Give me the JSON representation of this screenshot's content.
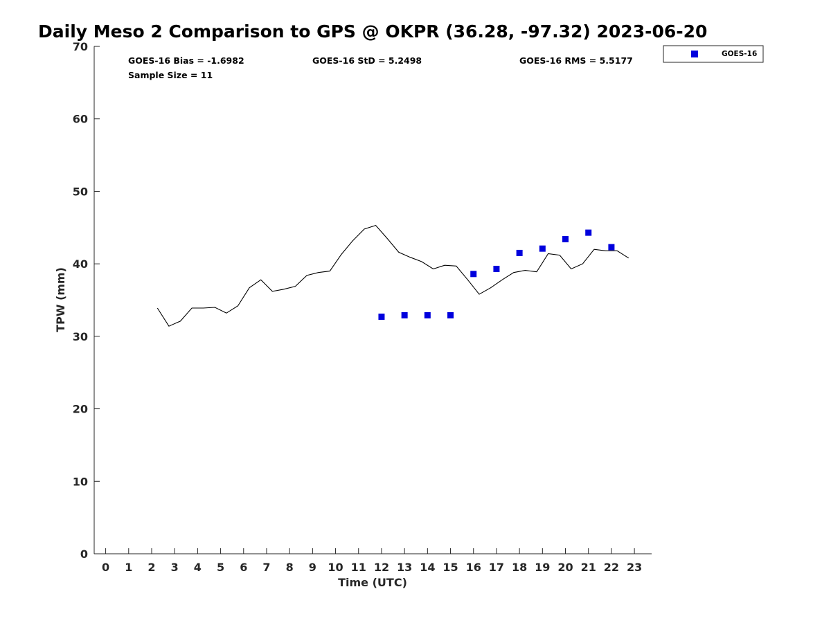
{
  "chart_data": {
    "type": "scatter",
    "title": "Daily Meso 2 Comparison to GPS @ OKPR (36.28, -97.32) 2023-06-20",
    "xlabel": "Time (UTC)",
    "ylabel": "TPW (mm)",
    "xlim": [
      -0.5,
      23.75
    ],
    "ylim": [
      0,
      70
    ],
    "x_ticks": [
      0,
      1,
      2,
      3,
      4,
      5,
      6,
      7,
      8,
      9,
      10,
      11,
      12,
      13,
      14,
      15,
      16,
      17,
      18,
      19,
      20,
      21,
      22,
      23
    ],
    "y_ticks": [
      0,
      10,
      20,
      30,
      40,
      50,
      60,
      70
    ],
    "grid": false,
    "legend_position": "top-right-outside",
    "stats": {
      "bias": "GOES-16 Bias = -1.6982",
      "std": "GOES-16 StD = 5.2498",
      "rms": "GOES-16 RMS = 5.5177",
      "sample_size": "Sample Size = 11"
    },
    "series": [
      {
        "kind": "line",
        "color": "#000000",
        "x": [
          2.25,
          2.75,
          3.25,
          3.75,
          4.25,
          4.75,
          5.25,
          5.75,
          6.25,
          6.75,
          7.25,
          7.75,
          8.25,
          8.75,
          9.25,
          9.75,
          10.25,
          10.75,
          11.25,
          11.75,
          12.25,
          12.75,
          13.25,
          13.75,
          14.25,
          14.75,
          15.25,
          15.75,
          16.25,
          16.75,
          17.25,
          17.75,
          18.25,
          18.75,
          19.25,
          19.75,
          20.25,
          20.75,
          21.25,
          21.75,
          22.25,
          22.75
        ],
        "y": [
          33.9,
          31.4,
          32.1,
          33.9,
          33.9,
          34.0,
          33.2,
          34.2,
          36.7,
          37.8,
          36.2,
          36.5,
          36.9,
          38.4,
          38.8,
          39.0,
          41.3,
          43.2,
          44.8,
          45.3,
          43.5,
          41.6,
          40.9,
          40.3,
          39.3,
          39.8,
          39.7,
          37.8,
          35.8,
          36.7,
          37.8,
          38.8,
          39.1,
          38.9,
          41.4,
          41.2,
          39.3,
          40.0,
          42.0,
          41.8,
          41.8,
          40.8
        ]
      },
      {
        "name": "GOES-16",
        "kind": "scatter",
        "color": "#0000dd",
        "x": [
          12,
          13,
          14,
          15,
          16,
          17,
          18,
          19,
          20,
          21,
          22
        ],
        "y": [
          32.7,
          32.9,
          32.9,
          32.9,
          38.6,
          39.3,
          41.5,
          42.1,
          43.4,
          44.3,
          42.3
        ]
      }
    ]
  }
}
